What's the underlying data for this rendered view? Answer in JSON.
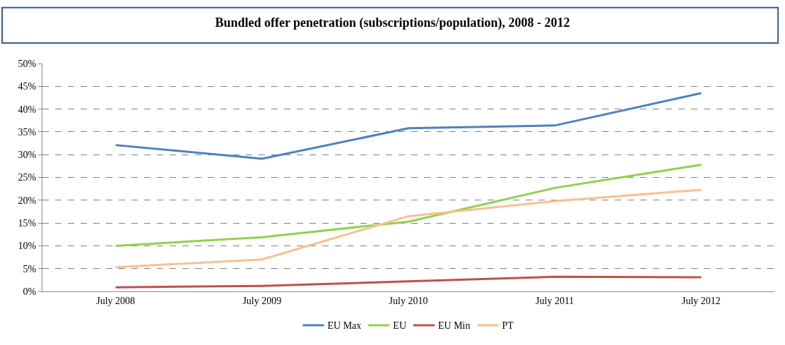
{
  "chart_data": {
    "type": "line",
    "title": "Bundled offer penetration (subscriptions/population), 2008 - 2012",
    "categories": [
      "July 2008",
      "July 2009",
      "July 2010",
      "July 2011",
      "July 2012"
    ],
    "series": [
      {
        "name": "EU Max",
        "color": "#4f81bd",
        "values": [
          32.1,
          29.1,
          35.8,
          36.4,
          43.5
        ]
      },
      {
        "name": "EU",
        "color": "#92d050",
        "values": [
          10.0,
          11.9,
          15.3,
          22.7,
          27.8
        ]
      },
      {
        "name": "EU Min",
        "color": "#c0504d",
        "values": [
          0.9,
          1.2,
          2.2,
          3.2,
          3.1
        ]
      },
      {
        "name": "PT",
        "color": "#fac090",
        "values": [
          5.3,
          7.0,
          16.5,
          19.8,
          22.3
        ]
      }
    ],
    "ylim": [
      0,
      50
    ],
    "yticks": [
      {
        "value": 0,
        "label": "0%"
      },
      {
        "value": 5,
        "label": "5%"
      },
      {
        "value": 10,
        "label": "10%"
      },
      {
        "value": 15,
        "label": "15%"
      },
      {
        "value": 20,
        "label": "20%"
      },
      {
        "value": 25,
        "label": "25%"
      },
      {
        "value": 30,
        "label": "30%"
      },
      {
        "value": 35,
        "label": "35%"
      },
      {
        "value": 40,
        "label": "40%"
      },
      {
        "value": 45,
        "label": "45%"
      },
      {
        "value": 50,
        "label": "50%"
      }
    ],
    "grid": "y",
    "legend": "bottom",
    "marker": "none",
    "line_style": "solid"
  }
}
